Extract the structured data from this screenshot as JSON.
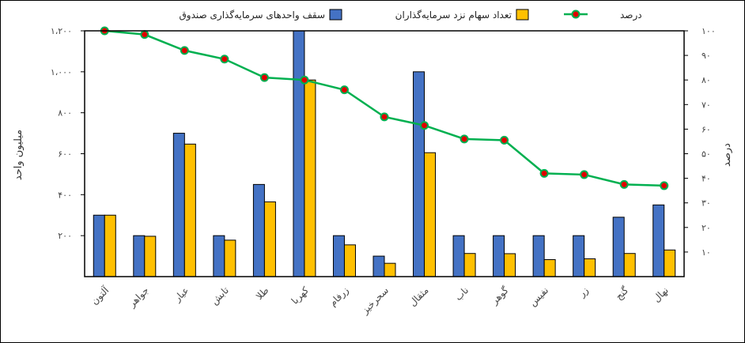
{
  "chart_data": {
    "type": "bar+line",
    "categories": [
      "آلتون",
      "جواهر",
      "عیار",
      "تابش",
      "طلا",
      "کهربا",
      "زرفام",
      "سحرخیز",
      "مثقال",
      "ناب",
      "گوهر",
      "نفیس",
      "زر",
      "گنج",
      "نهال"
    ],
    "series": [
      {
        "name": "سقف واحدهای سرمایه‌گذاری صندوق",
        "kind": "bar",
        "axis": "left",
        "color": "#4472C4",
        "values": [
          300,
          200,
          700,
          200,
          450,
          1200,
          200,
          100,
          1000,
          200,
          200,
          200,
          200,
          290,
          350
        ]
      },
      {
        "name": "تعداد سهام نزد سرمایه‌گذاران",
        "kind": "bar",
        "axis": "left",
        "color": "#FFC000",
        "values": [
          300,
          197,
          647,
          178,
          365,
          960,
          155,
          65,
          605,
          113,
          112,
          83,
          87,
          113,
          130
        ]
      },
      {
        "name": "درصد",
        "kind": "line",
        "axis": "right",
        "color": "#00B050",
        "marker_color": "#E00000",
        "values": [
          100,
          98.5,
          92,
          88.5,
          81,
          80,
          76,
          65,
          61.5,
          56,
          55.5,
          42,
          41.5,
          37.5,
          37
        ]
      }
    ],
    "y_left": {
      "label": "میلیون واحد",
      "range": [
        0,
        1200
      ],
      "ticks": [
        200,
        400,
        600,
        800,
        1000,
        1200
      ],
      "tick_labels": [
        "۲۰۰",
        "۴۰۰",
        "۶۰۰",
        "۸۰۰",
        "۱،۰۰۰",
        "۱،۲۰۰"
      ]
    },
    "y_right": {
      "label": "درصد",
      "range": [
        0,
        100
      ],
      "ticks": [
        10,
        20,
        30,
        40,
        50,
        60,
        70,
        80,
        90,
        100
      ],
      "tick_labels": [
        "۱۰",
        "۲۰",
        "۳۰",
        "۴۰",
        "۵۰",
        "۶۰",
        "۷۰",
        "۸۰",
        "۹۰",
        "۱۰۰"
      ]
    },
    "legend_position": "top",
    "grid": false
  }
}
